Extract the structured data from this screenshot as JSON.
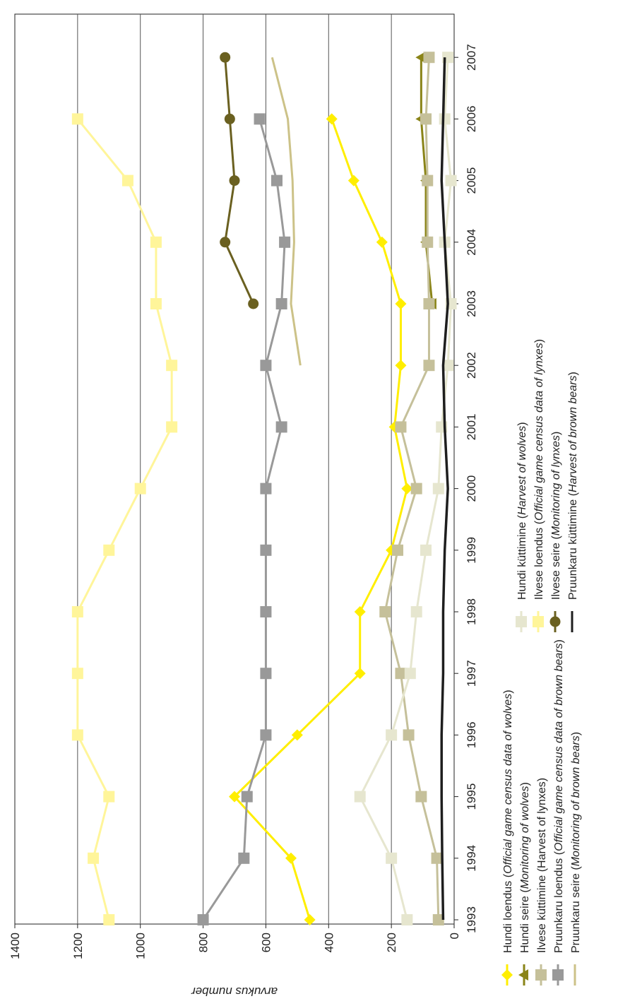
{
  "chart_data": {
    "type": "line",
    "orientation": "rotated-90",
    "ylabel": "arvukus number",
    "ylim": [
      0,
      1400
    ],
    "yticks": [
      "0",
      "200",
      "400",
      "600",
      "800",
      "1000",
      "1200",
      "1400"
    ],
    "categories": [
      "1993",
      "1994",
      "1995",
      "1996",
      "1997",
      "1998",
      "1999",
      "2000",
      "2001",
      "2002",
      "2003",
      "2004",
      "2005",
      "2006",
      "2007"
    ],
    "grid": true,
    "legend_position": "bottom",
    "series": [
      {
        "key": "hundi_loendus",
        "legend_plain": "Hundi loendus (",
        "legend_italic": "Official game census data of wolves",
        "legend_close": ")",
        "color": "#ffee00",
        "marker": "diamond",
        "values": [
          460,
          520,
          700,
          500,
          300,
          300,
          200,
          150,
          190,
          170,
          170,
          230,
          320,
          390,
          null
        ]
      },
      {
        "key": "hundi_seire",
        "legend_plain": "Hundi seire (",
        "legend_italic": "Monitoring of wolves",
        "legend_close": ")",
        "color": "#8a8418",
        "marker": "triangle",
        "values": [
          null,
          null,
          null,
          null,
          null,
          null,
          null,
          null,
          null,
          null,
          70,
          90,
          90,
          105,
          105
        ]
      },
      {
        "key": "ilvese_kuttimine",
        "legend_plain": "Ilvese küttimine (Harvest of lynxes)",
        "legend_italic": "",
        "legend_close": "",
        "color": "#c5c09a",
        "marker": "square",
        "values": [
          50,
          55,
          105,
          145,
          170,
          220,
          180,
          120,
          170,
          80,
          80,
          85,
          85,
          90,
          80
        ]
      },
      {
        "key": "pruunkaru_loendus",
        "legend_plain": "Pruunkaru loendus (",
        "legend_italic": "Official game census data of brown bears",
        "legend_close": ")",
        "color": "#999999",
        "marker": "square",
        "values": [
          800,
          670,
          660,
          600,
          600,
          600,
          600,
          600,
          550,
          600,
          550,
          540,
          565,
          620,
          null
        ]
      },
      {
        "key": "pruunkaru_seire",
        "legend_plain": "Pruunkaru seire (",
        "legend_italic": "Monitoring of brown bears",
        "legend_close": ")",
        "color": "#ccc288",
        "marker": "none",
        "values": [
          null,
          null,
          null,
          null,
          null,
          null,
          null,
          null,
          null,
          490,
          520,
          510,
          515,
          530,
          580
        ]
      },
      {
        "key": "hundi_kuttimine",
        "legend_plain": "Hundi küttimine (",
        "legend_italic": "Harvest of wolves",
        "legend_close": ")",
        "color": "#e6e6cf",
        "marker": "square",
        "values": [
          150,
          200,
          300,
          200,
          140,
          120,
          90,
          50,
          40,
          20,
          10,
          30,
          10,
          30,
          20
        ]
      },
      {
        "key": "ilvese_loendus",
        "legend_plain": "Ilvese loendus (",
        "legend_italic": "Official game census data of lynxes",
        "legend_close": ")",
        "color": "#fff59a",
        "marker": "square",
        "values": [
          1100,
          1150,
          1100,
          1200,
          1200,
          1200,
          1100,
          1000,
          900,
          900,
          950,
          950,
          1040,
          1200,
          null
        ]
      },
      {
        "key": "ilvese_seire",
        "legend_plain": "Ilvese seire (",
        "legend_italic": "Monitoring of lynxes",
        "legend_close": ")",
        "color": "#6a6020",
        "marker": "circle",
        "values": [
          null,
          null,
          null,
          null,
          null,
          null,
          null,
          null,
          null,
          null,
          640,
          730,
          700,
          715,
          730
        ]
      },
      {
        "key": "pruunkaru_kuttimine",
        "legend_plain": "Pruunkaru küttimine (",
        "legend_italic": "Harvest of brown bears",
        "legend_close": ")",
        "color": "#1e1e1e",
        "marker": "none",
        "values": [
          35,
          38,
          40,
          40,
          35,
          35,
          30,
          20,
          30,
          35,
          20,
          30,
          40,
          35,
          30
        ]
      }
    ]
  }
}
